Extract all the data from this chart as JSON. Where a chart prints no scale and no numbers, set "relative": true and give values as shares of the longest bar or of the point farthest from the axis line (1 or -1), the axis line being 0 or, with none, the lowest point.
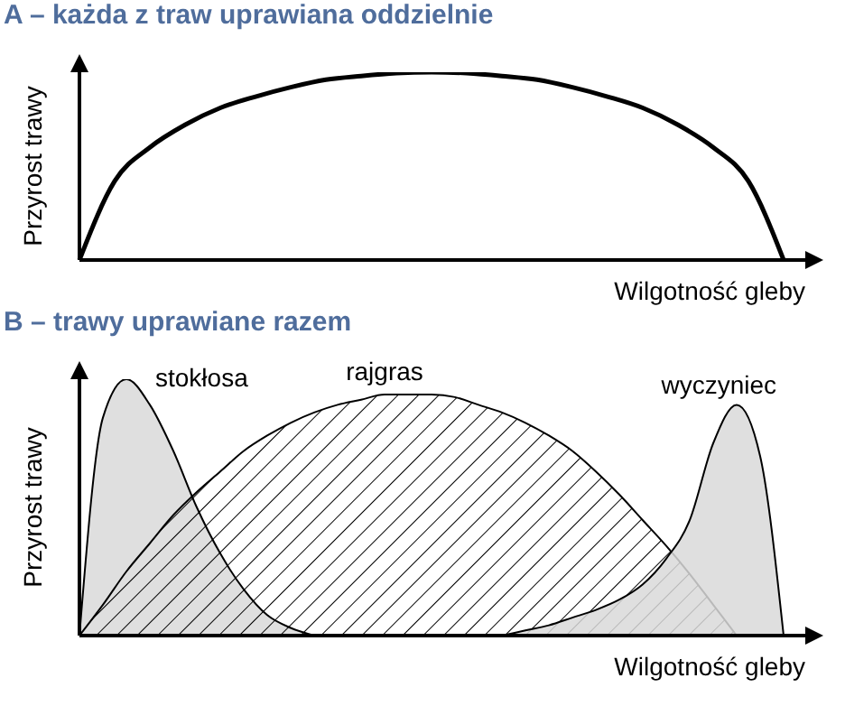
{
  "chart_data": [
    {
      "type": "line",
      "title": "A – każda z traw uprawiana oddzielnie",
      "xlabel": "Wilgotność gleby",
      "ylabel": "Przyrost trawy",
      "relative": true,
      "color": "#000000",
      "categories": [
        null,
        null,
        null,
        null,
        null,
        null,
        null,
        null,
        null,
        null,
        null,
        null,
        null,
        null,
        null,
        null,
        null,
        null,
        null,
        null,
        null
      ],
      "values": [
        0,
        0.42,
        0.6,
        0.72,
        0.81,
        0.87,
        0.92,
        0.96,
        0.98,
        0.995,
        1,
        0.995,
        0.98,
        0.96,
        0.92,
        0.87,
        0.81,
        0.72,
        0.6,
        0.42,
        0
      ]
    },
    {
      "type": "area",
      "title": "B – trawy uprawiane razem",
      "xlabel": "Wilgotność gleby",
      "ylabel": "Przyrost trawy",
      "relative": true,
      "categories": [
        null,
        null,
        null,
        null,
        null,
        null,
        null,
        null,
        null,
        null,
        null,
        null,
        null,
        null,
        null,
        null,
        null,
        null,
        null,
        null,
        null,
        null,
        null,
        null,
        null,
        null,
        null,
        null,
        null,
        null,
        null
      ],
      "series": [
        {
          "name": "stokłosa",
          "color": "#d9d9d9",
          "values": [
            0,
            0.85,
            1,
            0.9,
            0.72,
            0.5,
            0.32,
            0.18,
            0.08,
            0.03,
            0,
            null,
            null,
            null,
            null,
            null,
            null,
            null,
            null,
            null,
            null,
            null,
            null,
            null,
            null,
            null,
            null,
            null,
            null,
            null,
            null
          ]
        },
        {
          "name": "rajgras",
          "color": "#000000",
          "values": [
            0,
            0.12,
            0.25,
            0.36,
            0.47,
            0.56,
            0.64,
            0.72,
            0.78,
            0.83,
            0.87,
            0.9,
            0.92,
            0.94,
            0.94,
            0.94,
            0.93,
            0.9,
            0.87,
            0.83,
            0.78,
            0.72,
            0.64,
            0.55,
            0.45,
            0.35,
            0.24,
            0.12,
            0,
            null,
            null
          ]
        },
        {
          "name": "wyczyniec",
          "color": "#d9d9d9",
          "values": [
            null,
            null,
            null,
            null,
            null,
            null,
            null,
            null,
            null,
            null,
            null,
            null,
            null,
            null,
            null,
            null,
            null,
            null,
            0,
            0.02,
            0.04,
            0.07,
            0.1,
            0.14,
            0.2,
            0.3,
            0.45,
            0.75,
            0.9,
            0.7,
            0
          ]
        }
      ]
    }
  ]
}
